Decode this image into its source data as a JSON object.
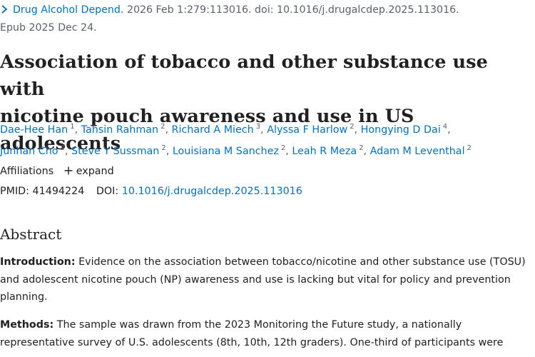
{
  "citation": {
    "journal": "Drug Alcohol Depend.",
    "details": "2026 Feb 1:279:113016. doi: 10.1016/j.drugalcdep.2025.113016.",
    "epub": "Epub 2025 Dec 24."
  },
  "title": {
    "line1": "Association of tobacco and other substance use with",
    "line2": "nicotine pouch awareness and use in US adolescents"
  },
  "authors": [
    {
      "name": "Dae-Hee Han",
      "aff": "1"
    },
    {
      "name": "Tahsin Rahman",
      "aff": "2"
    },
    {
      "name": "Richard A Miech",
      "aff": "3"
    },
    {
      "name": "Alyssa F Harlow",
      "aff": "2"
    },
    {
      "name": "Hongying D Dai",
      "aff": "4"
    },
    {
      "name": "Junhan Cho",
      "aff": "2"
    },
    {
      "name": "Steve Y Sussman",
      "aff": "2"
    },
    {
      "name": "Louisiana M Sanchez",
      "aff": "2"
    },
    {
      "name": "Leah R Meza",
      "aff": "2"
    },
    {
      "name": "Adam M Leventhal",
      "aff": "2"
    }
  ],
  "affiliations": {
    "label": "Affiliations",
    "expand_label": "expand"
  },
  "ids": {
    "pmid_label": "PMID:",
    "pmid": "41494224",
    "doi_label": "DOI:",
    "doi": "10.1016/j.drugalcdep.2025.113016"
  },
  "abstract": {
    "heading": "Abstract",
    "intro_label": "Introduction:",
    "intro_text_line1": " Evidence on the association between tobacco/nicotine and other substance use (TOSU)",
    "intro_text_line2": "and adolescent nicotine pouch (NP) awareness and use is lacking but vital for policy and prevention",
    "intro_text_line3": "planning.",
    "methods_label": "Methods:",
    "methods_text_line1": " The sample was drawn from the 2023 Monitoring the Future study, a nationally",
    "methods_text_line2": "representative survey of U.S. adolescents (8th, 10th, 12th graders). One-third of participants were"
  },
  "colors": {
    "link": "#0071bc",
    "text": "#212121",
    "muted": "#5b616b"
  }
}
